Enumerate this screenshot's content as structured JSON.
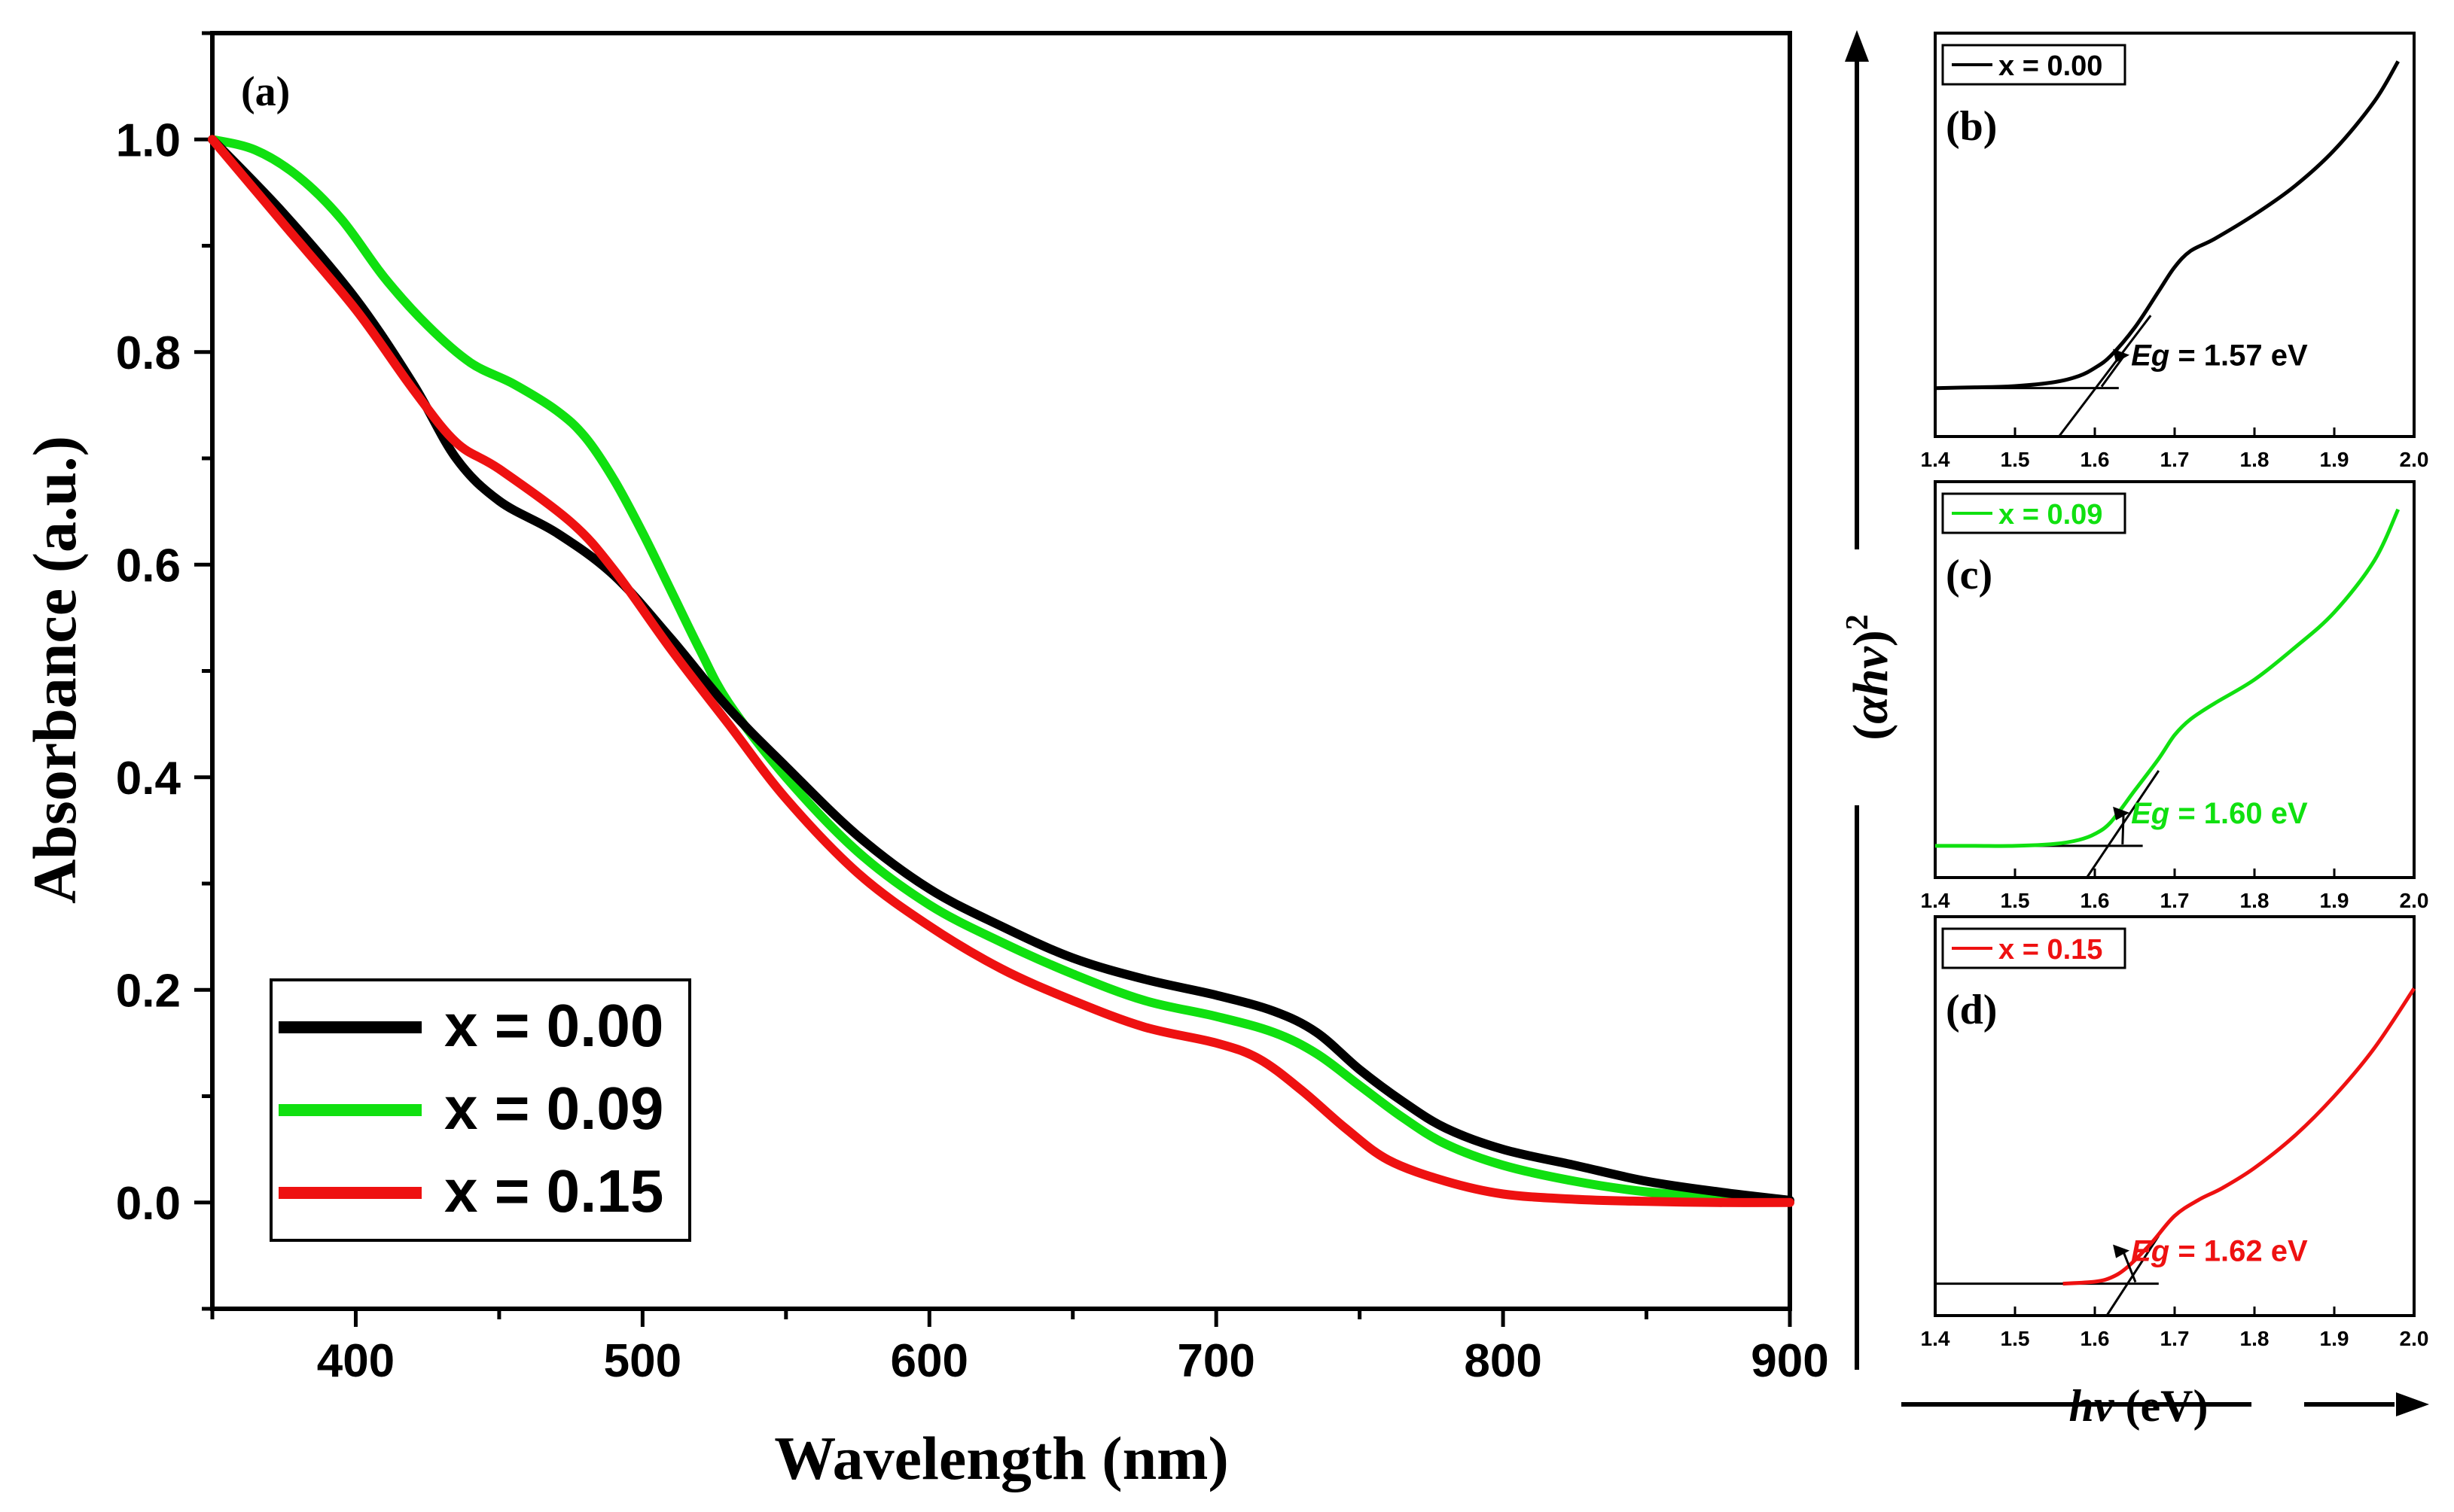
{
  "chart_data": [
    {
      "panel": "(a)",
      "type": "line",
      "xlabel": "Wavelength (nm)",
      "ylabel": "Absorbance (a.u.)",
      "xlim": [
        350,
        900
      ],
      "ylim": [
        -0.1,
        1.1
      ],
      "xticks": [
        "400",
        "500",
        "600",
        "700",
        "800",
        "900"
      ],
      "yticks": [
        "0.0",
        "0.2",
        "0.4",
        "0.6",
        "0.8",
        "1.0"
      ],
      "legend_position": "bottom-left",
      "series": [
        {
          "name": "x = 0.00",
          "color": "#000000",
          "x": [
            350,
            375,
            400,
            420,
            435,
            450,
            470,
            490,
            510,
            530,
            550,
            575,
            600,
            625,
            650,
            675,
            700,
            720,
            735,
            750,
            765,
            780,
            800,
            825,
            850,
            875,
            900
          ],
          "y": [
            1.0,
            0.93,
            0.85,
            0.77,
            0.7,
            0.66,
            0.63,
            0.59,
            0.53,
            0.465,
            0.41,
            0.345,
            0.295,
            0.26,
            0.23,
            0.21,
            0.195,
            0.18,
            0.16,
            0.125,
            0.095,
            0.07,
            0.05,
            0.035,
            0.02,
            0.01,
            0.002
          ]
        },
        {
          "name": "x = 0.09",
          "color": "#10e010",
          "x": [
            350,
            365,
            380,
            395,
            410,
            425,
            440,
            455,
            470,
            480,
            490,
            500,
            510,
            520,
            530,
            550,
            575,
            600,
            625,
            650,
            675,
            700,
            720,
            735,
            750,
            765,
            780,
            800,
            825,
            850,
            875,
            900
          ],
          "y": [
            1.0,
            0.99,
            0.965,
            0.925,
            0.87,
            0.825,
            0.79,
            0.77,
            0.745,
            0.72,
            0.68,
            0.63,
            0.575,
            0.52,
            0.47,
            0.4,
            0.33,
            0.28,
            0.245,
            0.215,
            0.19,
            0.175,
            0.16,
            0.14,
            0.11,
            0.08,
            0.055,
            0.035,
            0.02,
            0.01,
            0.005,
            0.001
          ]
        },
        {
          "name": "x = 0.15",
          "color": "#ee1111",
          "x": [
            350,
            375,
            400,
            420,
            435,
            450,
            475,
            490,
            510,
            530,
            550,
            575,
            600,
            625,
            650,
            675,
            700,
            715,
            730,
            745,
            760,
            780,
            800,
            825,
            850,
            875,
            900
          ],
          "y": [
            1.0,
            0.92,
            0.84,
            0.765,
            0.715,
            0.69,
            0.64,
            0.595,
            0.52,
            0.45,
            0.38,
            0.31,
            0.26,
            0.22,
            0.19,
            0.165,
            0.15,
            0.135,
            0.105,
            0.07,
            0.04,
            0.02,
            0.008,
            0.003,
            0.001,
            0.0,
            0.0
          ]
        }
      ]
    },
    {
      "panel": "(b)",
      "type": "line",
      "legend": "x = 0.00",
      "color": "#000000",
      "annotation_label": "Eg",
      "annotation_value": "= 1.57 eV",
      "xlim": [
        1.4,
        2.0
      ],
      "ylim": [
        0,
        1
      ],
      "xticks": [
        "1.4",
        "1.5",
        "1.6",
        "1.7",
        "1.8",
        "1.9",
        "2.0"
      ],
      "series": [
        {
          "name": "x = 0.00",
          "x": [
            1.4,
            1.45,
            1.5,
            1.55,
            1.58,
            1.6,
            1.62,
            1.65,
            1.68,
            1.7,
            1.72,
            1.75,
            1.8,
            1.85,
            1.9,
            1.95,
            1.98
          ],
          "y": [
            0.12,
            0.122,
            0.125,
            0.135,
            0.15,
            0.17,
            0.2,
            0.27,
            0.36,
            0.42,
            0.46,
            0.49,
            0.55,
            0.62,
            0.71,
            0.83,
            0.93
          ]
        }
      ],
      "baseline_x": [
        1.4,
        1.63
      ],
      "baseline_y": 0.12,
      "tangent_x": [
        1.555,
        1.67
      ],
      "tangent_y": [
        0.0,
        0.3
      ]
    },
    {
      "panel": "(c)",
      "type": "line",
      "legend": "x = 0.09",
      "color": "#10e010",
      "annotation_label": "Eg",
      "annotation_value": "= 1.60 eV",
      "xlim": [
        1.4,
        2.0
      ],
      "ylim": [
        0,
        1
      ],
      "xticks": [
        "1.4",
        "1.5",
        "1.6",
        "1.7",
        "1.8",
        "1.9",
        "2.0"
      ],
      "series": [
        {
          "name": "x = 0.09",
          "x": [
            1.4,
            1.45,
            1.5,
            1.55,
            1.58,
            1.6,
            1.62,
            1.65,
            1.68,
            1.7,
            1.72,
            1.75,
            1.8,
            1.85,
            1.9,
            1.95,
            1.98
          ],
          "y": [
            0.08,
            0.08,
            0.08,
            0.085,
            0.095,
            0.11,
            0.14,
            0.22,
            0.3,
            0.36,
            0.4,
            0.44,
            0.5,
            0.58,
            0.67,
            0.8,
            0.93
          ]
        }
      ],
      "baseline_x": [
        1.4,
        1.66
      ],
      "baseline_y": 0.08,
      "tangent_x": [
        1.59,
        1.68
      ],
      "tangent_y": [
        0.0,
        0.27
      ]
    },
    {
      "panel": "(d)",
      "type": "line",
      "legend": "x = 0.15",
      "color": "#ee1111",
      "annotation_label": "Eg",
      "annotation_value": "= 1.62 eV",
      "xlim": [
        1.4,
        2.0
      ],
      "ylim": [
        0,
        1
      ],
      "xticks": [
        "1.4",
        "1.5",
        "1.6",
        "1.7",
        "1.8",
        "1.9",
        "2.0"
      ],
      "series": [
        {
          "name": "x = 0.15",
          "x": [
            1.56,
            1.6,
            1.62,
            1.64,
            1.67,
            1.7,
            1.73,
            1.76,
            1.8,
            1.85,
            1.9,
            1.95,
            2.0
          ],
          "y": [
            0.08,
            0.085,
            0.095,
            0.12,
            0.18,
            0.25,
            0.29,
            0.32,
            0.37,
            0.45,
            0.55,
            0.67,
            0.82
          ]
        }
      ],
      "baseline_x": [
        1.4,
        1.68
      ],
      "baseline_y": 0.08,
      "tangent_x": [
        1.615,
        1.68
      ],
      "tangent_y": [
        0.0,
        0.2
      ]
    }
  ],
  "shared": {
    "ylabel_prefix": "(",
    "ylabel_alpha_h_nu": "αhν",
    "ylabel_suffix": ")",
    "ylabel_exp": "2",
    "xlabel_hnu": "hν",
    "xlabel_unit": " (eV)"
  }
}
